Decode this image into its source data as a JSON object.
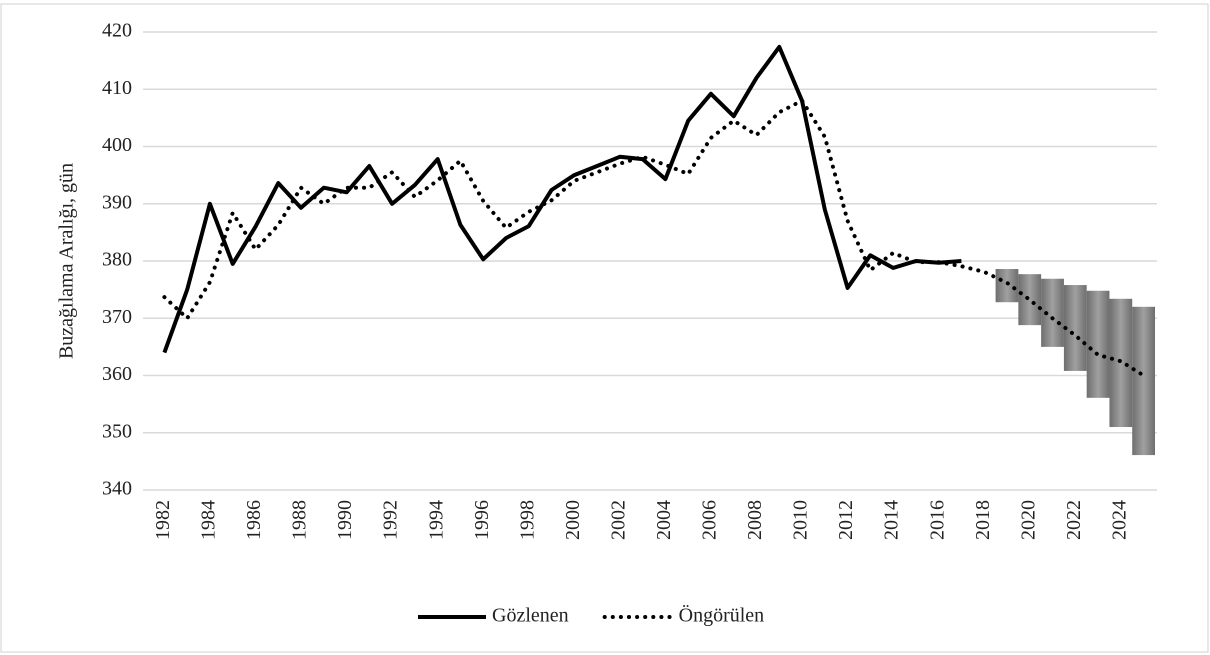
{
  "chart_data": {
    "type": "line",
    "y_label": "Buzağılama Aralığı, gün",
    "categories": [
      "1982",
      null,
      "1984",
      null,
      "1986",
      null,
      "1988",
      null,
      "1990",
      null,
      "1992",
      null,
      "1994",
      null,
      "1996",
      null,
      "1998",
      null,
      "2000",
      null,
      "2002",
      null,
      "2004",
      null,
      "2006",
      null,
      "2008",
      null,
      "2010",
      null,
      "2012",
      null,
      "2014",
      null,
      "2016",
      null,
      "2018",
      null,
      "2020",
      null,
      "2022",
      null,
      "2024",
      null
    ],
    "series": [
      {
        "name": "Gözlenen",
        "color": "#000000",
        "style": "solid",
        "values": [
          364,
          375,
          390,
          379.5,
          386,
          393.6,
          389.3,
          392.8,
          392,
          396.6,
          390,
          393.3,
          397.8,
          386.3,
          380.3,
          384,
          386.1,
          392.4,
          395,
          396.6,
          398.2,
          397.8,
          394.3,
          404.5,
          409.2,
          405.3,
          412,
          417.4,
          408,
          389,
          375.3,
          381,
          378.8,
          380,
          379.7,
          380,
          null,
          null,
          null,
          null,
          null,
          null,
          null,
          null
        ]
      },
      {
        "name": "Öngörülen",
        "color": "#000000",
        "style": "dotted",
        "values": [
          373.7,
          370,
          376.3,
          388.4,
          382,
          386.3,
          392.8,
          390,
          392.8,
          392.8,
          395.5,
          391.2,
          394.1,
          397.5,
          390.5,
          385.8,
          388.6,
          390.6,
          394,
          395.5,
          397,
          398.2,
          396.8,
          395.2,
          401.5,
          404.5,
          402,
          406,
          408,
          401.7,
          387,
          378.4,
          381.4,
          379.8,
          379.8,
          379.1,
          378.1,
          376.2,
          373.2,
          370,
          367,
          363.6,
          362.5,
          360
        ]
      }
    ],
    "interval": {
      "color": "#808080",
      "upper": [
        null,
        null,
        null,
        null,
        null,
        null,
        null,
        null,
        null,
        null,
        null,
        null,
        null,
        null,
        null,
        null,
        null,
        null,
        null,
        null,
        null,
        null,
        null,
        null,
        null,
        null,
        null,
        null,
        null,
        null,
        null,
        null,
        null,
        null,
        null,
        null,
        null,
        378.6,
        377.7,
        376.9,
        375.8,
        374.8,
        373.4,
        372
      ],
      "lower": [
        null,
        null,
        null,
        null,
        null,
        null,
        null,
        null,
        null,
        null,
        null,
        null,
        null,
        null,
        null,
        null,
        null,
        null,
        null,
        null,
        null,
        null,
        null,
        null,
        null,
        null,
        null,
        null,
        null,
        null,
        null,
        null,
        null,
        null,
        null,
        null,
        null,
        372.8,
        368.8,
        365,
        360.8,
        356.1,
        351,
        346.1
      ]
    },
    "ylim": [
      340,
      420
    ],
    "yticks": [
      340,
      350,
      360,
      370,
      380,
      390,
      400,
      410,
      420
    ],
    "grid": true,
    "legend": "bottom"
  }
}
